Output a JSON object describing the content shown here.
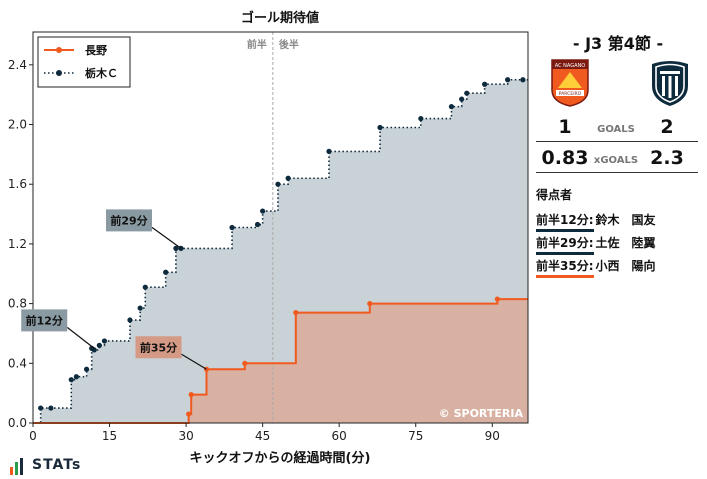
{
  "chart_data": {
    "type": "line",
    "title": "ゴール期待値",
    "xlabel": "キックオフからの経過時間(分)",
    "ylabel": "",
    "xlim": [
      0,
      97
    ],
    "ylim": [
      0,
      2.62
    ],
    "x_ticks": [
      0,
      15,
      30,
      45,
      60,
      75,
      90
    ],
    "y_ticks": [
      0.0,
      0.4,
      0.8,
      1.2,
      1.6,
      2.0,
      2.4
    ],
    "x_tick_labels": [
      "0",
      "15",
      "30",
      "45",
      "60",
      "75",
      "90"
    ],
    "y_tick_labels": [
      "0.0",
      "0.4",
      "0.8",
      "1.2",
      "1.6",
      "2.0",
      "2.4"
    ],
    "halftime_minute": 47,
    "halftime_labels": {
      "first": "前半",
      "second": "後半"
    },
    "legend_position": "top-left",
    "series": [
      {
        "name": "長野",
        "color": "#f15a1f",
        "fill": "#d8b1a2",
        "style": "solid",
        "points": [
          [
            0,
            0
          ],
          [
            30.5,
            0.06
          ],
          [
            31,
            0.19
          ],
          [
            34,
            0.36
          ],
          [
            41.5,
            0.4
          ],
          [
            51.5,
            0.74
          ],
          [
            66,
            0.8
          ],
          [
            91,
            0.83
          ],
          [
            97,
            0.83
          ]
        ]
      },
      {
        "name": "栃木Ｃ",
        "color": "#0e2a3d",
        "fill": "#c9d2d6",
        "style": "dotted",
        "points": [
          [
            0,
            0
          ],
          [
            1.5,
            0.1
          ],
          [
            3.5,
            0.1
          ],
          [
            7.5,
            0.29
          ],
          [
            8.5,
            0.31
          ],
          [
            10.5,
            0.36
          ],
          [
            11.5,
            0.5
          ],
          [
            12,
            0.49
          ],
          [
            13,
            0.52
          ],
          [
            14,
            0.55
          ],
          [
            19,
            0.69
          ],
          [
            21,
            0.77
          ],
          [
            22,
            0.91
          ],
          [
            26,
            1.01
          ],
          [
            28,
            1.17
          ],
          [
            29,
            1.17
          ],
          [
            39,
            1.31
          ],
          [
            44,
            1.33
          ],
          [
            45,
            1.42
          ],
          [
            48,
            1.6
          ],
          [
            50,
            1.64
          ],
          [
            58,
            1.82
          ],
          [
            68,
            1.98
          ],
          [
            76,
            2.04
          ],
          [
            82,
            2.12
          ],
          [
            84,
            2.17
          ],
          [
            85,
            2.21
          ],
          [
            88.5,
            2.27
          ],
          [
            93,
            2.3
          ],
          [
            96,
            2.3
          ],
          [
            97,
            2.3
          ]
        ]
      }
    ],
    "annotations": [
      {
        "text": "前12分",
        "x": 12,
        "y": 0.5,
        "color": "#8a9aa3"
      },
      {
        "text": "前29分",
        "x": 29,
        "y": 1.17,
        "color": "#8a9aa3"
      },
      {
        "text": "前35分",
        "x": 34,
        "y": 0.36,
        "color": "#d49a86"
      }
    ],
    "watermark": "© SPORTERIA"
  },
  "match": {
    "title": "- J3 第4節 -",
    "home_logo_text": "AC NAGANO PARCEIRO",
    "home_goals": "1",
    "away_goals": "2",
    "goals_label": "GOALS",
    "home_xg": "0.83",
    "away_xg": "2.3",
    "xg_label": "xGOALS",
    "home_color": "#f15a1f",
    "away_color": "#0e2a3d"
  },
  "scorers": {
    "title": "得点者",
    "items": [
      {
        "time": "前半12分:",
        "name": "鈴木　国友",
        "team_color": "#0e2a3d"
      },
      {
        "time": "前半29分:",
        "name": "土佐　陸翼",
        "team_color": "#0e2a3d"
      },
      {
        "time": "前半35分:",
        "name": "小西　陽向",
        "team_color": "#f15a1f"
      }
    ]
  },
  "brand": {
    "name": "STATs"
  }
}
